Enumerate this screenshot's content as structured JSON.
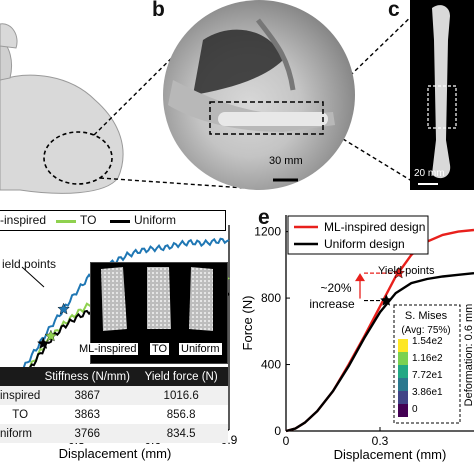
{
  "panel_labels": {
    "b": "b",
    "c": "c",
    "e": "e"
  },
  "panel_b": {
    "scale_bar": "30 mm"
  },
  "panel_c": {
    "scale_bar": "20 mm"
  },
  "chart_d": {
    "legend": [
      "-inspired",
      "TO",
      "Uniform"
    ],
    "yield_label": "ield points",
    "xlabel": "Displacement (mm)",
    "x_ticks": [
      "0.3",
      "0.6",
      "0.9"
    ],
    "inset_labels": [
      "ML-inspired",
      "TO",
      "Uniform"
    ],
    "table": {
      "header": [
        "",
        "Stiffness (N/mm)",
        "Yield force (N)"
      ],
      "rows": [
        [
          "inspired",
          "3867",
          "1016.6"
        ],
        [
          "TO",
          "3863",
          "856.8"
        ],
        [
          "niform",
          "3766",
          "834.5"
        ]
      ]
    }
  },
  "chart_data": [
    {
      "type": "line",
      "panel": "d",
      "xlabel": "Displacement (mm)",
      "ylabel": "",
      "xlim": [
        0,
        0.9
      ],
      "series": [
        {
          "name": "ML-inspired",
          "color": "#1f77b4",
          "x": [
            0,
            0.05,
            0.1,
            0.15,
            0.2,
            0.25,
            0.3,
            0.35,
            0.4,
            0.45,
            0.5,
            0.55,
            0.6,
            0.65,
            0.7,
            0.75,
            0.8,
            0.85,
            0.9
          ],
          "y": [
            420,
            510,
            600,
            690,
            780,
            860,
            940,
            1010,
            1050,
            1080,
            1110,
            1130,
            1140,
            1145,
            1160,
            1170,
            1165,
            1175,
            1180
          ]
        },
        {
          "name": "TO",
          "color": "#8fd14f",
          "x": [
            0,
            0.05,
            0.1,
            0.15,
            0.2,
            0.25,
            0.3,
            0.35,
            0.4,
            0.45,
            0.5,
            0.55,
            0.6,
            0.65,
            0.7,
            0.75,
            0.8,
            0.85,
            0.9
          ],
          "y": [
            390,
            470,
            560,
            650,
            730,
            790,
            840,
            880,
            900,
            920,
            935,
            950,
            960,
            970,
            980,
            985,
            990,
            995,
            1000
          ]
        },
        {
          "name": "Uniform",
          "color": "#000000",
          "x": [
            0,
            0.05,
            0.1,
            0.15,
            0.2,
            0.25,
            0.3,
            0.35,
            0.4,
            0.45,
            0.5,
            0.55,
            0.6,
            0.65,
            0.7,
            0.75,
            0.8,
            0.85,
            0.9
          ],
          "y": [
            380,
            460,
            550,
            640,
            720,
            780,
            820,
            850,
            870,
            880,
            890,
            900,
            905,
            910,
            915,
            918,
            920,
            922,
            925
          ]
        }
      ],
      "yield_points": [
        {
          "series": "ML-inspired",
          "x": 0.25,
          "y": 860
        },
        {
          "series": "TO",
          "x": 0.2,
          "y": 735
        },
        {
          "series": "Uniform",
          "x": 0.17,
          "y": 700
        }
      ]
    },
    {
      "type": "line",
      "panel": "e",
      "xlabel": "Displacement (mm)",
      "ylabel": "Force (N)",
      "xlim": [
        0,
        0.6
      ],
      "ylim": [
        0,
        1300
      ],
      "x_ticks": [
        "0",
        "0.3"
      ],
      "y_ticks": [
        "0",
        "400",
        "800",
        "1200"
      ],
      "series": [
        {
          "name": "ML-inspired design",
          "color": "#e8201c",
          "x": [
            0,
            0.03,
            0.06,
            0.1,
            0.15,
            0.2,
            0.25,
            0.3,
            0.35,
            0.4,
            0.45,
            0.5,
            0.55,
            0.6
          ],
          "y": [
            0,
            15,
            50,
            120,
            240,
            400,
            570,
            750,
            930,
            1060,
            1140,
            1180,
            1200,
            1210
          ]
        },
        {
          "name": "Uniform design",
          "color": "#000000",
          "x": [
            0,
            0.03,
            0.06,
            0.1,
            0.15,
            0.2,
            0.25,
            0.3,
            0.35,
            0.4,
            0.45,
            0.5,
            0.55,
            0.6
          ],
          "y": [
            0,
            15,
            50,
            120,
            240,
            390,
            560,
            715,
            830,
            890,
            915,
            930,
            940,
            950
          ]
        }
      ],
      "yield_points": [
        {
          "series": "ML-inspired design",
          "x": 0.36,
          "y": 950
        },
        {
          "series": "Uniform design",
          "x": 0.32,
          "y": 785
        }
      ],
      "annotations": [
        "Yield points",
        "~20%",
        "increase"
      ],
      "colorbar": {
        "title": [
          "S. Mises",
          "(Avg: 75%)"
        ],
        "ticks": [
          "1.54e2",
          "1.16e2",
          "7.72e1",
          "3.86e1",
          "0"
        ]
      },
      "side_text": [
        "Deformation: 0.6 mm"
      ]
    }
  ]
}
